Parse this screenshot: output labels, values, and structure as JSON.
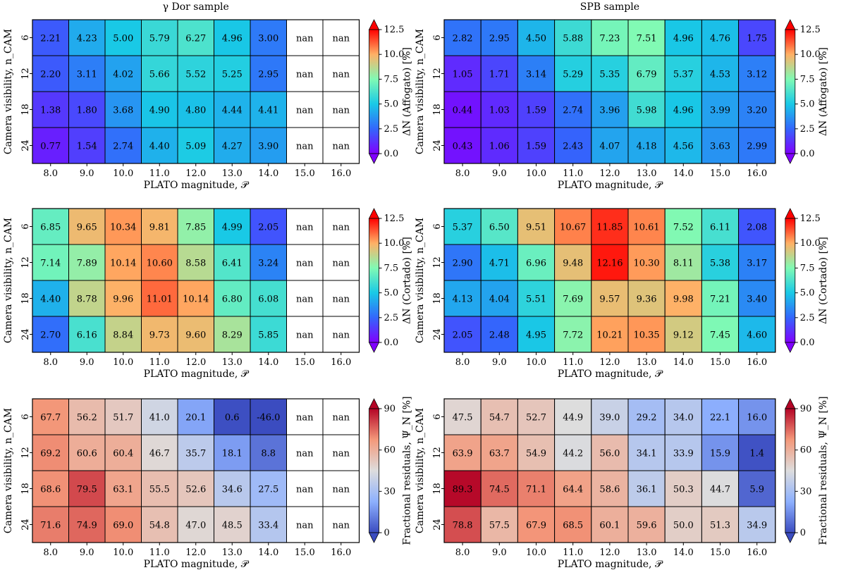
{
  "figure": {
    "row_titles": [
      "γ Dor sample",
      "SPB sample"
    ]
  },
  "chart_data": [
    {
      "type": "heatmap",
      "title": "γ Dor sample",
      "xlabel": "PLATO magnitude, 𝒫",
      "ylabel": "Camera visibility, n_CAM",
      "x": [
        "8.0",
        "9.0",
        "10.0",
        "11.0",
        "12.0",
        "13.0",
        "14.0",
        "15.0",
        "16.0"
      ],
      "y": [
        "6",
        "12",
        "18",
        "24"
      ],
      "values": [
        [
          "2.21",
          "4.23",
          "5.00",
          "5.79",
          "6.27",
          "4.96",
          "3.00",
          "nan",
          "nan"
        ],
        [
          "2.20",
          "3.11",
          "4.02",
          "5.66",
          "5.52",
          "5.25",
          "2.95",
          "nan",
          "nan"
        ],
        [
          "1.38",
          "1.80",
          "3.68",
          "4.90",
          "4.80",
          "4.44",
          "4.41",
          "nan",
          "nan"
        ],
        [
          "0.77",
          "1.54",
          "2.74",
          "4.40",
          "5.09",
          "4.27",
          "3.90",
          "nan",
          "nan"
        ]
      ],
      "cmap": "rainbow",
      "vmin": 0.0,
      "vmax": 12.5,
      "colorbar_ticks": [
        "0.0",
        "2.5",
        "5.0",
        "7.5",
        "10.0",
        "12.5"
      ],
      "colorbar_label": "ΔN (Affogato) [%]"
    },
    {
      "type": "heatmap",
      "title": "SPB sample",
      "xlabel": "PLATO magnitude, 𝒫",
      "ylabel": "Camera visibility, n_CAM",
      "x": [
        "8.0",
        "9.0",
        "10.0",
        "11.0",
        "12.0",
        "13.0",
        "14.0",
        "15.0",
        "16.0"
      ],
      "y": [
        "6",
        "12",
        "18",
        "24"
      ],
      "values": [
        [
          "2.82",
          "2.95",
          "4.50",
          "5.88",
          "7.23",
          "7.51",
          "4.96",
          "4.76",
          "1.75"
        ],
        [
          "1.05",
          "1.71",
          "3.14",
          "5.29",
          "5.35",
          "6.79",
          "5.37",
          "4.53",
          "3.12"
        ],
        [
          "0.44",
          "1.03",
          "1.59",
          "2.74",
          "3.96",
          "5.98",
          "4.96",
          "3.99",
          "3.20"
        ],
        [
          "0.43",
          "1.06",
          "1.59",
          "2.43",
          "4.07",
          "4.18",
          "4.56",
          "3.63",
          "2.99"
        ]
      ],
      "cmap": "rainbow",
      "vmin": 0.0,
      "vmax": 12.5,
      "colorbar_ticks": [
        "0.0",
        "2.5",
        "5.0",
        "7.5",
        "10.0",
        "12.5"
      ],
      "colorbar_label": "ΔN (Affogato) [%]"
    },
    {
      "type": "heatmap",
      "title": "",
      "xlabel": "PLATO magnitude, 𝒫",
      "ylabel": "Camera visibility, n_CAM",
      "x": [
        "8.0",
        "9.0",
        "10.0",
        "11.0",
        "12.0",
        "13.0",
        "14.0",
        "15.0",
        "16.0"
      ],
      "y": [
        "6",
        "12",
        "18",
        "24"
      ],
      "values": [
        [
          "6.85",
          "9.65",
          "10.34",
          "9.81",
          "7.85",
          "4.99",
          "2.05",
          "nan",
          "nan"
        ],
        [
          "7.14",
          "7.89",
          "10.14",
          "10.60",
          "8.58",
          "6.41",
          "3.24",
          "nan",
          "nan"
        ],
        [
          "4.40",
          "8.78",
          "9.96",
          "11.01",
          "10.14",
          "6.80",
          "6.08",
          "nan",
          "nan"
        ],
        [
          "2.70",
          "6.16",
          "8.84",
          "9.73",
          "9.60",
          "8.29",
          "5.85",
          "nan",
          "nan"
        ]
      ],
      "cmap": "rainbow",
      "vmin": 0.0,
      "vmax": 12.5,
      "colorbar_ticks": [
        "0.0",
        "2.5",
        "5.0",
        "7.5",
        "10.0",
        "12.5"
      ],
      "colorbar_label": "ΔN (Cortado) [%]"
    },
    {
      "type": "heatmap",
      "title": "",
      "xlabel": "PLATO magnitude, 𝒫",
      "ylabel": "Camera visibility, n_CAM",
      "x": [
        "8.0",
        "9.0",
        "10.0",
        "11.0",
        "12.0",
        "13.0",
        "14.0",
        "15.0",
        "16.0"
      ],
      "y": [
        "6",
        "12",
        "18",
        "24"
      ],
      "values": [
        [
          "5.37",
          "6.50",
          "9.51",
          "10.67",
          "11.85",
          "10.61",
          "7.52",
          "6.11",
          "2.08"
        ],
        [
          "2.90",
          "4.71",
          "6.96",
          "9.48",
          "12.16",
          "10.30",
          "8.11",
          "5.38",
          "3.17"
        ],
        [
          "4.13",
          "4.04",
          "5.51",
          "7.69",
          "9.57",
          "9.36",
          "9.98",
          "7.21",
          "3.40"
        ],
        [
          "2.05",
          "2.48",
          "4.95",
          "7.72",
          "10.21",
          "10.35",
          "9.12",
          "7.45",
          "4.60"
        ]
      ],
      "cmap": "rainbow",
      "vmin": 0.0,
      "vmax": 12.5,
      "colorbar_ticks": [
        "0.0",
        "2.5",
        "5.0",
        "7.5",
        "10.0",
        "12.5"
      ],
      "colorbar_label": "ΔN (Cortado) [%]"
    },
    {
      "type": "heatmap",
      "title": "",
      "xlabel": "PLATO magnitude, 𝒫",
      "ylabel": "Camera visibility, n_CAM",
      "x": [
        "8.0",
        "9.0",
        "10.0",
        "11.0",
        "12.0",
        "13.0",
        "14.0",
        "15.0",
        "16.0"
      ],
      "y": [
        "6",
        "12",
        "18",
        "24"
      ],
      "values": [
        [
          "67.7",
          "56.2",
          "51.7",
          "41.0",
          "20.1",
          "0.6",
          "-46.0",
          "nan",
          "nan"
        ],
        [
          "69.2",
          "60.6",
          "60.4",
          "46.7",
          "35.7",
          "18.1",
          "8.8",
          "nan",
          "nan"
        ],
        [
          "68.6",
          "79.5",
          "63.1",
          "55.5",
          "52.6",
          "34.6",
          "27.5",
          "nan",
          "nan"
        ],
        [
          "71.6",
          "74.9",
          "69.0",
          "54.8",
          "47.0",
          "48.5",
          "33.4",
          "nan",
          "nan"
        ]
      ],
      "cmap": "coolwarm",
      "vmin": 0,
      "vmax": 90,
      "colorbar_ticks": [
        "0",
        "30",
        "60",
        "90"
      ],
      "colorbar_label": "Fractional residuals, Ψ_N [%]"
    },
    {
      "type": "heatmap",
      "title": "",
      "xlabel": "PLATO magnitude, 𝒫",
      "ylabel": "Camera visibility, n_CAM",
      "x": [
        "8.0",
        "9.0",
        "10.0",
        "11.0",
        "12.0",
        "13.0",
        "14.0",
        "15.0",
        "16.0"
      ],
      "y": [
        "6",
        "12",
        "18",
        "24"
      ],
      "values": [
        [
          "47.5",
          "54.7",
          "52.7",
          "44.9",
          "39.0",
          "29.2",
          "34.0",
          "22.1",
          "16.0"
        ],
        [
          "63.9",
          "63.7",
          "54.9",
          "44.2",
          "56.0",
          "34.1",
          "33.9",
          "15.9",
          "1.4"
        ],
        [
          "89.3",
          "74.5",
          "71.1",
          "64.4",
          "58.6",
          "36.1",
          "50.3",
          "44.7",
          "5.9"
        ],
        [
          "78.8",
          "57.5",
          "67.9",
          "68.5",
          "60.1",
          "59.6",
          "50.0",
          "51.3",
          "34.9"
        ]
      ],
      "cmap": "coolwarm",
      "vmin": 0,
      "vmax": 90,
      "colorbar_ticks": [
        "0",
        "30",
        "60",
        "90"
      ],
      "colorbar_label": "Fractional residuals, Ψ_N [%]"
    }
  ]
}
